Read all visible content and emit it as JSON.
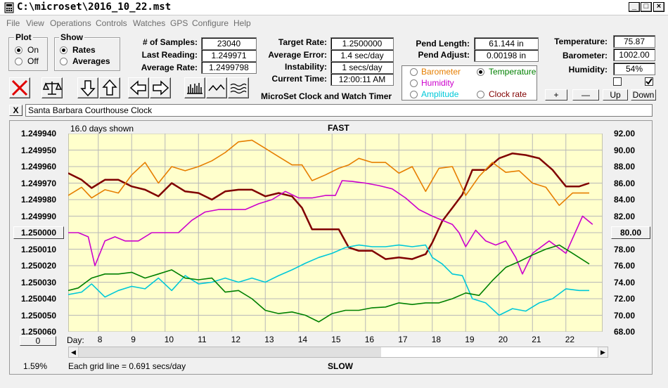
{
  "window": {
    "title": "C:\\microset\\2016_10_22.mst"
  },
  "menu": [
    "File",
    "View",
    "Operations",
    "Controls",
    "Watches",
    "GPS",
    "Configure",
    "Help"
  ],
  "plot_group": {
    "title": "Plot",
    "on": "On",
    "off": "Off",
    "selected": "On"
  },
  "show_group": {
    "title": "Show",
    "rates": "Rates",
    "averages": "Averages",
    "selected": "Rates"
  },
  "stats": [
    {
      "label": "# of Samples:",
      "value": "23040"
    },
    {
      "label": "Last Reading:",
      "value": "1.249971"
    },
    {
      "label": "Average Rate:",
      "value": "1.2499798"
    }
  ],
  "rates": [
    {
      "label": "Target Rate:",
      "value": "1.2500000"
    },
    {
      "label": "Average Error:",
      "value": "1.4 sec/day"
    },
    {
      "label": "Instability:",
      "value": "1 secs/day"
    },
    {
      "label": "Current Time:",
      "value": "12:00:11 AM"
    }
  ],
  "app_caption": "MicroSet Clock and Watch Timer",
  "pendulum": [
    {
      "label": "Pend Length:",
      "value": "61.144 in"
    },
    {
      "label": "Pend Adjust:",
      "value": "0.00198 in"
    }
  ],
  "sensors": {
    "options": [
      {
        "label": "Barometer",
        "color": "#e67e00",
        "selected": false
      },
      {
        "label": "Temperature",
        "color": "#008000",
        "selected": true
      },
      {
        "label": "Humidity",
        "color": "#cc00cc",
        "selected": false
      },
      {
        "label": "Amplitude",
        "color": "#00c8d8",
        "selected": false
      },
      {
        "label": "Clock rate",
        "color": "#800000",
        "selected": false
      }
    ]
  },
  "environment": [
    {
      "label": "Temperature:",
      "value": "75.87"
    },
    {
      "label": "Barometer:",
      "value": "1002.00"
    },
    {
      "label": "Humidity:",
      "value": "54%"
    }
  ],
  "checkboxes": [
    false,
    true
  ],
  "scale_buttons": {
    "plus": "+",
    "minus": "—",
    "up": "Up",
    "down": "Down"
  },
  "toolbar_icons": [
    "clear-icon",
    "balance-icon",
    "arrow-down-icon",
    "arrow-up-icon",
    "arrow-left-icon",
    "arrow-right-icon",
    "bars-icon",
    "line-icon",
    "wave-icon"
  ],
  "close_button": "X",
  "clock_name": "Santa Barbara Courthouse Clock",
  "chart": {
    "top_left": "16.0 days shown",
    "top_center": "FAST",
    "bottom_center": "SLOW",
    "center_rate_button": "1.250000",
    "center_temp_button": "80.00",
    "offset_button": "0",
    "zoom": "1.59%",
    "grid_note": "Each grid line = 0.691 secs/day",
    "day_label": "Day:"
  },
  "chart_data": {
    "type": "line",
    "x_ticks": [
      "8",
      "9",
      "10",
      "11",
      "12",
      "13",
      "14",
      "15",
      "16",
      "17",
      "18",
      "19",
      "20",
      "21",
      "22"
    ],
    "y_left_ticks": [
      "1.249940",
      "1.249950",
      "1.249960",
      "1.249970",
      "1.249980",
      "1.249990",
      "1.250000",
      "1.250010",
      "1.250020",
      "1.250030",
      "1.250040",
      "1.250050",
      "1.250060"
    ],
    "y_right_ticks": [
      "92.00",
      "90.00",
      "88.00",
      "86.00",
      "84.00",
      "82.00",
      "80.00",
      "78.00",
      "76.00",
      "74.00",
      "72.00",
      "70.00",
      "68.00"
    ],
    "xlim": [
      7.1,
      23.1
    ],
    "y_left_range": [
      1.24994,
      1.25006
    ],
    "y_right_range": [
      68,
      92
    ],
    "grid": true,
    "series": [
      {
        "name": "Clock rate",
        "color": "#800000",
        "axis": "left",
        "x": [
          7.1,
          7.5,
          7.8,
          8.2,
          8.6,
          9.0,
          9.4,
          9.8,
          10.2,
          10.6,
          11.0,
          11.4,
          11.8,
          12.2,
          12.6,
          13.0,
          13.4,
          13.8,
          14.1,
          14.4,
          14.8,
          15.2,
          15.5,
          15.8,
          16.2,
          16.6,
          17.0,
          17.4,
          17.8,
          18.0,
          18.3,
          18.6,
          18.9,
          19.2,
          19.6,
          20.0,
          20.4,
          20.8,
          21.2,
          21.6,
          22.0,
          22.4,
          22.7
        ],
        "y": [
          1.249964,
          1.249968,
          1.249973,
          1.249968,
          1.249968,
          1.249972,
          1.249974,
          1.249978,
          1.24997,
          1.249975,
          1.249976,
          1.24998,
          1.249975,
          1.249974,
          1.249974,
          1.249978,
          1.249976,
          1.249978,
          1.249985,
          1.249998,
          1.249998,
          1.249998,
          1.250009,
          1.250011,
          1.250011,
          1.250016,
          1.250015,
          1.250016,
          1.250013,
          1.250006,
          1.249993,
          1.249985,
          1.249977,
          1.249962,
          1.249962,
          1.249955,
          1.249952,
          1.249953,
          1.249955,
          1.249962,
          1.249972,
          1.249972,
          1.24997
        ]
      },
      {
        "name": "Barometer",
        "color": "#e67e00",
        "axis": "right",
        "x": [
          7.1,
          7.5,
          7.8,
          8.2,
          8.6,
          9.0,
          9.4,
          9.8,
          10.2,
          10.6,
          11.0,
          11.4,
          11.8,
          12.2,
          12.6,
          13.0,
          13.4,
          13.8,
          14.1,
          14.4,
          14.8,
          15.2,
          15.5,
          15.8,
          16.2,
          16.6,
          17.0,
          17.4,
          17.8,
          18.2,
          18.6,
          19.0,
          19.4,
          19.8,
          20.2,
          20.6,
          21.0,
          21.4,
          21.8,
          22.2,
          22.7
        ],
        "y": [
          84.5,
          85.5,
          84.2,
          85.2,
          84.8,
          87.0,
          88.5,
          86.0,
          88.0,
          87.5,
          88.0,
          88.7,
          89.7,
          91.0,
          91.2,
          90.2,
          89.2,
          88.2,
          88.2,
          86.3,
          87.0,
          87.8,
          88.2,
          89.0,
          88.5,
          88.5,
          87.2,
          88.0,
          85.0,
          87.8,
          88.0,
          84.5,
          86.8,
          88.5,
          87.3,
          87.5,
          86.0,
          85.5,
          83.3,
          84.8,
          84.8
        ]
      },
      {
        "name": "Humidity",
        "color": "#cc00cc",
        "axis": "right",
        "x": [
          7.1,
          7.4,
          7.7,
          7.9,
          8.2,
          8.5,
          8.8,
          9.2,
          9.6,
          10.0,
          10.4,
          10.8,
          11.2,
          11.6,
          12.0,
          12.4,
          12.8,
          13.2,
          13.6,
          14.0,
          14.4,
          14.8,
          15.1,
          15.3,
          15.6,
          16.0,
          16.4,
          16.8,
          17.2,
          17.6,
          18.0,
          18.3,
          18.6,
          18.8,
          19.0,
          19.3,
          19.6,
          19.9,
          20.2,
          20.5,
          20.7,
          21.0,
          21.5,
          22.0,
          22.5,
          22.8
        ],
        "y": [
          80.0,
          80.0,
          79.5,
          76.0,
          79.0,
          79.5,
          79.0,
          79.0,
          80.0,
          80.0,
          80.0,
          81.5,
          82.5,
          82.8,
          82.8,
          82.8,
          83.5,
          84.0,
          85.0,
          84.2,
          84.2,
          84.5,
          84.5,
          86.3,
          86.2,
          86.0,
          85.7,
          85.3,
          84.2,
          82.8,
          82.0,
          81.5,
          81.0,
          80.0,
          78.3,
          80.3,
          79.0,
          78.5,
          79.0,
          77.0,
          75.0,
          77.5,
          79.0,
          77.5,
          82.0,
          81.0
        ]
      },
      {
        "name": "Amplitude",
        "color": "#00c8d8",
        "axis": "right",
        "x": [
          7.1,
          7.5,
          7.8,
          8.2,
          8.6,
          9.0,
          9.4,
          9.8,
          10.2,
          10.6,
          11.0,
          11.4,
          11.8,
          12.2,
          12.6,
          13.0,
          13.4,
          13.8,
          14.2,
          14.6,
          15.0,
          15.4,
          15.8,
          16.2,
          16.6,
          17.0,
          17.4,
          17.8,
          18.0,
          18.3,
          18.6,
          18.9,
          19.2,
          19.6,
          20.0,
          20.4,
          20.8,
          21.2,
          21.6,
          22.0,
          22.4,
          22.7
        ],
        "y": [
          72.5,
          72.8,
          73.8,
          72.2,
          73.0,
          73.5,
          73.2,
          74.5,
          73.0,
          74.8,
          73.8,
          74.0,
          74.5,
          74.0,
          74.5,
          74.0,
          74.8,
          75.5,
          76.3,
          77.0,
          77.5,
          78.2,
          78.5,
          78.3,
          78.3,
          78.5,
          78.3,
          78.5,
          77.0,
          76.2,
          75.0,
          74.8,
          72.0,
          71.5,
          70.0,
          70.8,
          70.5,
          71.5,
          72.0,
          73.2,
          73.0,
          73.0
        ]
      },
      {
        "name": "Temperature",
        "color": "#008000",
        "axis": "right",
        "x": [
          7.1,
          7.4,
          7.8,
          8.2,
          8.6,
          9.0,
          9.4,
          9.8,
          10.2,
          10.6,
          11.0,
          11.4,
          11.8,
          12.2,
          12.6,
          13.0,
          13.4,
          13.8,
          14.2,
          14.6,
          15.0,
          15.4,
          15.8,
          16.2,
          16.6,
          17.0,
          17.4,
          17.8,
          18.2,
          18.6,
          19.0,
          19.4,
          19.8,
          20.2,
          20.6,
          21.0,
          21.4,
          21.8,
          22.2,
          22.7
        ],
        "y": [
          73.0,
          73.3,
          74.5,
          75.0,
          75.0,
          75.2,
          74.5,
          75.0,
          75.5,
          74.5,
          74.3,
          74.5,
          72.8,
          73.0,
          72.0,
          70.6,
          70.2,
          70.4,
          70.0,
          69.2,
          70.2,
          70.6,
          70.6,
          70.9,
          71.0,
          71.5,
          71.3,
          71.5,
          71.5,
          72.0,
          72.7,
          72.4,
          74.2,
          75.8,
          76.5,
          77.3,
          78.0,
          78.5,
          77.5,
          76.2
        ]
      }
    ]
  }
}
